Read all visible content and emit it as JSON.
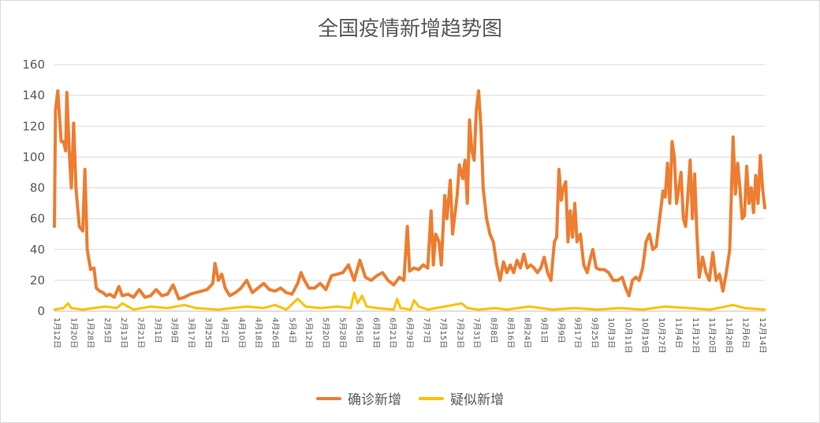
{
  "chart_data": {
    "type": "line",
    "title": "全国疫情新增趋势图",
    "ylim": [
      0,
      160
    ],
    "yticks": [
      0,
      20,
      40,
      60,
      80,
      100,
      120,
      140,
      160
    ],
    "grid": true,
    "legend_position": "bottom",
    "x_tick_labels": [
      "1月12日",
      "1月20日",
      "1月28日",
      "2月5日",
      "2月13日",
      "2月21日",
      "3月1日",
      "3月9日",
      "3月17日",
      "3月25日",
      "4月2日",
      "4月10日",
      "4月18日",
      "4月26日",
      "5月4日",
      "5月12日",
      "5月20日",
      "5月28日",
      "6月5日",
      "6月13日",
      "6月21日",
      "6月29日",
      "7月7日",
      "7月15日",
      "7月23日",
      "7月31日",
      "8月8日",
      "8月16日",
      "8月24日",
      "9月1日",
      "9月9日",
      "9月17日",
      "9月25日",
      "10月3日",
      "10月11日",
      "10月19日",
      "10月27日",
      "11月4日",
      "11月12日",
      "11月20日",
      "11月28日",
      "12月6日",
      "12月14日"
    ],
    "series": [
      {
        "name": "确诊新增",
        "color": "#ED7D31",
        "keypoints": [
          [
            0,
            55
          ],
          [
            1,
            130
          ],
          [
            3,
            143
          ],
          [
            6,
            110
          ],
          [
            8,
            110
          ],
          [
            10,
            104
          ],
          [
            11,
            142
          ],
          [
            13,
            105
          ],
          [
            15,
            80
          ],
          [
            17,
            122
          ],
          [
            19,
            80
          ],
          [
            22,
            55
          ],
          [
            25,
            52
          ],
          [
            27,
            92
          ],
          [
            29,
            40
          ],
          [
            32,
            27
          ],
          [
            35,
            28
          ],
          [
            37,
            15
          ],
          [
            40,
            13
          ],
          [
            43,
            12
          ],
          [
            46,
            10
          ],
          [
            49,
            11
          ],
          [
            53,
            9
          ],
          [
            57,
            16
          ],
          [
            60,
            10
          ],
          [
            65,
            11
          ],
          [
            70,
            9
          ],
          [
            75,
            14
          ],
          [
            80,
            9
          ],
          [
            85,
            10
          ],
          [
            90,
            14
          ],
          [
            95,
            10
          ],
          [
            100,
            11
          ],
          [
            105,
            17
          ],
          [
            110,
            8
          ],
          [
            115,
            9
          ],
          [
            120,
            11
          ],
          [
            125,
            12
          ],
          [
            130,
            13
          ],
          [
            135,
            14
          ],
          [
            140,
            18
          ],
          [
            142,
            31
          ],
          [
            145,
            20
          ],
          [
            148,
            24
          ],
          [
            151,
            15
          ],
          [
            155,
            10
          ],
          [
            160,
            12
          ],
          [
            165,
            15
          ],
          [
            170,
            20
          ],
          [
            175,
            12
          ],
          [
            180,
            15
          ],
          [
            185,
            18
          ],
          [
            190,
            14
          ],
          [
            195,
            13
          ],
          [
            200,
            15
          ],
          [
            205,
            12
          ],
          [
            210,
            11
          ],
          [
            215,
            18
          ],
          [
            218,
            25
          ],
          [
            221,
            20
          ],
          [
            225,
            15
          ],
          [
            230,
            15
          ],
          [
            235,
            18
          ],
          [
            240,
            14
          ],
          [
            245,
            23
          ],
          [
            250,
            24
          ],
          [
            255,
            25
          ],
          [
            260,
            30
          ],
          [
            265,
            20
          ],
          [
            270,
            33
          ],
          [
            275,
            22
          ],
          [
            280,
            20
          ],
          [
            285,
            23
          ],
          [
            290,
            25
          ],
          [
            295,
            20
          ],
          [
            300,
            17
          ],
          [
            305,
            22
          ],
          [
            309,
            20
          ],
          [
            312,
            55
          ],
          [
            314,
            26
          ],
          [
            318,
            28
          ],
          [
            322,
            27
          ],
          [
            326,
            30
          ],
          [
            330,
            28
          ],
          [
            333,
            65
          ],
          [
            335,
            30
          ],
          [
            337,
            50
          ],
          [
            340,
            45
          ],
          [
            342,
            30
          ],
          [
            345,
            75
          ],
          [
            347,
            60
          ],
          [
            350,
            85
          ],
          [
            352,
            50
          ],
          [
            356,
            75
          ],
          [
            358,
            95
          ],
          [
            361,
            86
          ],
          [
            363,
            98
          ],
          [
            365,
            70
          ],
          [
            367,
            124
          ],
          [
            369,
            104
          ],
          [
            371,
            98
          ],
          [
            373,
            130
          ],
          [
            375,
            143
          ],
          [
            377,
            120
          ],
          [
            379,
            80
          ],
          [
            382,
            60
          ],
          [
            385,
            50
          ],
          [
            388,
            45
          ],
          [
            391,
            30
          ],
          [
            394,
            20
          ],
          [
            397,
            32
          ],
          [
            400,
            25
          ],
          [
            403,
            30
          ],
          [
            406,
            25
          ],
          [
            409,
            33
          ],
          [
            412,
            28
          ],
          [
            415,
            37
          ],
          [
            418,
            28
          ],
          [
            421,
            30
          ],
          [
            424,
            28
          ],
          [
            427,
            25
          ],
          [
            430,
            28
          ],
          [
            433,
            35
          ],
          [
            436,
            25
          ],
          [
            439,
            20
          ],
          [
            442,
            45
          ],
          [
            444,
            48
          ],
          [
            446,
            92
          ],
          [
            448,
            72
          ],
          [
            450,
            80
          ],
          [
            452,
            84
          ],
          [
            454,
            45
          ],
          [
            456,
            65
          ],
          [
            458,
            48
          ],
          [
            460,
            70
          ],
          [
            462,
            45
          ],
          [
            465,
            50
          ],
          [
            468,
            30
          ],
          [
            471,
            25
          ],
          [
            474,
            35
          ],
          [
            476,
            40
          ],
          [
            479,
            28
          ],
          [
            482,
            27
          ],
          [
            486,
            27
          ],
          [
            490,
            25
          ],
          [
            494,
            20
          ],
          [
            498,
            20
          ],
          [
            502,
            22
          ],
          [
            505,
            15
          ],
          [
            508,
            10
          ],
          [
            511,
            20
          ],
          [
            514,
            22
          ],
          [
            517,
            20
          ],
          [
            520,
            28
          ],
          [
            523,
            45
          ],
          [
            526,
            50
          ],
          [
            529,
            40
          ],
          [
            532,
            42
          ],
          [
            535,
            60
          ],
          [
            538,
            78
          ],
          [
            540,
            74
          ],
          [
            542,
            96
          ],
          [
            544,
            70
          ],
          [
            546,
            110
          ],
          [
            548,
            100
          ],
          [
            550,
            70
          ],
          [
            552,
            80
          ],
          [
            554,
            90
          ],
          [
            556,
            60
          ],
          [
            558,
            55
          ],
          [
            560,
            75
          ],
          [
            562,
            98
          ],
          [
            564,
            60
          ],
          [
            566,
            89
          ],
          [
            568,
            50
          ],
          [
            570,
            22
          ],
          [
            573,
            35
          ],
          [
            576,
            25
          ],
          [
            579,
            20
          ],
          [
            582,
            38
          ],
          [
            585,
            20
          ],
          [
            588,
            24
          ],
          [
            591,
            13
          ],
          [
            594,
            25
          ],
          [
            597,
            40
          ],
          [
            600,
            113
          ],
          [
            602,
            76
          ],
          [
            604,
            96
          ],
          [
            606,
            80
          ],
          [
            608,
            60
          ],
          [
            610,
            62
          ],
          [
            612,
            94
          ],
          [
            614,
            70
          ],
          [
            616,
            80
          ],
          [
            618,
            64
          ],
          [
            620,
            88
          ],
          [
            622,
            70
          ],
          [
            624,
            101
          ],
          [
            626,
            80
          ],
          [
            628,
            67
          ]
        ]
      },
      {
        "name": "疑似新增",
        "color": "#FFC000",
        "keypoints": [
          [
            0,
            1
          ],
          [
            8,
            2
          ],
          [
            12,
            5
          ],
          [
            15,
            2
          ],
          [
            25,
            1
          ],
          [
            35,
            2
          ],
          [
            45,
            3
          ],
          [
            55,
            2
          ],
          [
            60,
            5
          ],
          [
            70,
            1
          ],
          [
            85,
            3
          ],
          [
            100,
            2
          ],
          [
            115,
            4
          ],
          [
            125,
            2
          ],
          [
            145,
            1
          ],
          [
            170,
            3
          ],
          [
            185,
            2
          ],
          [
            195,
            4
          ],
          [
            205,
            1
          ],
          [
            215,
            8
          ],
          [
            222,
            3
          ],
          [
            235,
            2
          ],
          [
            250,
            3
          ],
          [
            262,
            2
          ],
          [
            265,
            12
          ],
          [
            268,
            5
          ],
          [
            272,
            10
          ],
          [
            276,
            3
          ],
          [
            285,
            2
          ],
          [
            300,
            1
          ],
          [
            303,
            8
          ],
          [
            306,
            2
          ],
          [
            315,
            1
          ],
          [
            318,
            7
          ],
          [
            322,
            3
          ],
          [
            330,
            1
          ],
          [
            345,
            3
          ],
          [
            360,
            5
          ],
          [
            365,
            2
          ],
          [
            375,
            1
          ],
          [
            390,
            2
          ],
          [
            400,
            1
          ],
          [
            420,
            3
          ],
          [
            440,
            1
          ],
          [
            460,
            2
          ],
          [
            480,
            1
          ],
          [
            500,
            2
          ],
          [
            520,
            1
          ],
          [
            540,
            3
          ],
          [
            560,
            2
          ],
          [
            580,
            1
          ],
          [
            600,
            4
          ],
          [
            610,
            2
          ],
          [
            628,
            1
          ]
        ]
      }
    ]
  }
}
